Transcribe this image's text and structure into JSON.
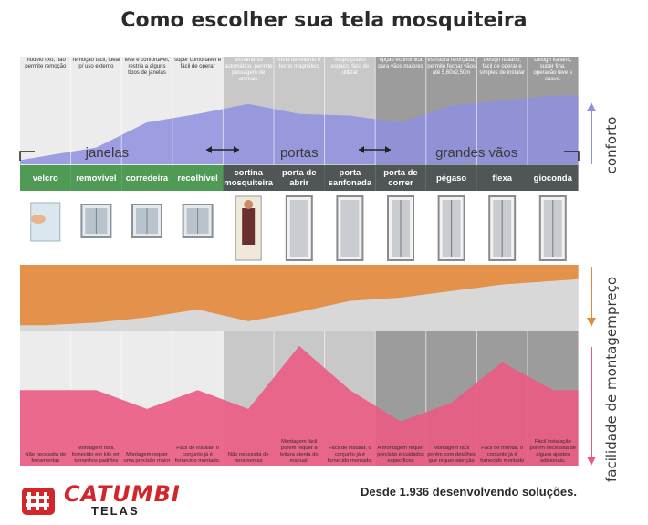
{
  "title": "Como escolher sua tela mosquiteira",
  "descriptions": [
    "modelo fixo, não permite remoção",
    "remoção fácil, ideal p/ uso externo",
    "leve e confortável, restria a alguns tipos de janelas",
    "super confortável e fácil de operar",
    "fechamento automático, permite passagem de animais",
    "mola de retorno e fecho magnético",
    "ocupo pouco espaço, fácil de utilizar",
    "opção econômica para vãos maiores",
    "estrutura reforçada, permite fechar vãos até 5,60x2,50m",
    "Design Italiano, fácil de operar e simples de instalar",
    "Design Italiano, super fina, operação leve e suave."
  ],
  "groups": [
    "janelas",
    "portas",
    "grandes vãos"
  ],
  "products": [
    "velcro",
    "removível",
    "corredeira",
    "recolhível",
    "cortina mosquiteira",
    "porta de abrir",
    "porta sanfonada",
    "porta de correr",
    "pégaso",
    "flexa",
    "gioconda"
  ],
  "install_notes": [
    "Não necessita de ferramentas",
    "Montagem fácil, fornecido em kits em tamanhos padrões",
    "Montagem requer uma precisão maior",
    "Fácil de instalar, o conjunto já é fornecido montado.",
    "Não necessita de ferramentas",
    "Montagem fácil porém requer a leitura atenta do manual.",
    "Fácil de instalar, o conjunto já é fornecido montado.",
    "A montagem requer precisão e cuidados específicos",
    "Montagem fácil porém com detalhes que requer atenção",
    "Fácil de montar, o conjunto já é fornecido montado",
    "Fácil instalação porém necessita de alguns ajustes adicionais."
  ],
  "side_labels": {
    "conforto": "conforto",
    "preco": "preço",
    "facilidade": "facilidade de montagem"
  },
  "footer": {
    "logo_name": "CATUMBI",
    "logo_sub": "TELAS",
    "slogan": "Desde 1.936 desenvolvendo soluções."
  },
  "chart_data": {
    "type": "area",
    "categories": [
      "velcro",
      "removível",
      "corredeira",
      "recolhível",
      "cortina mosquiteira",
      "porta de abrir",
      "porta sanfonada",
      "porta de correr",
      "pégaso",
      "flexa",
      "gioconda"
    ],
    "series": [
      {
        "name": "conforto",
        "values": [
          0.05,
          0.2,
          0.5,
          0.6,
          0.72,
          0.6,
          0.58,
          0.5,
          0.7,
          0.76,
          0.82
        ]
      },
      {
        "name": "preço",
        "values": [
          0.92,
          0.88,
          0.8,
          0.68,
          0.86,
          0.72,
          0.55,
          0.5,
          0.4,
          0.3,
          0.22
        ]
      },
      {
        "name": "facilidade de montagem",
        "values": [
          0.6,
          0.6,
          0.45,
          0.6,
          0.45,
          0.95,
          0.6,
          0.35,
          0.5,
          0.82,
          0.6
        ]
      }
    ],
    "colors": {
      "conforto": "#8f8fe0",
      "preco": "#e58a3c",
      "facilidade": "#ea5b82",
      "product_bar_green": "#4f9b56",
      "product_bar_gray": "#505555",
      "column_light": "#ececec",
      "column_mid": "#c8c8c8",
      "column_dark": "#9c9c9c"
    }
  }
}
